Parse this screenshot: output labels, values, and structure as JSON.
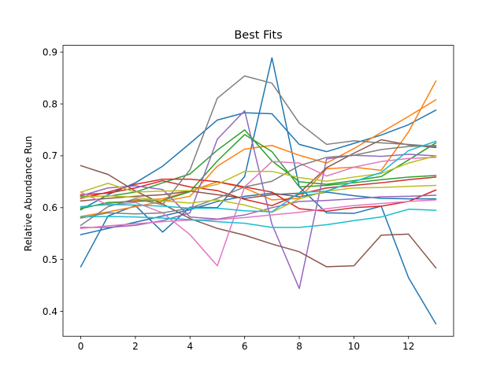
{
  "chart_data": {
    "type": "line",
    "title": "Best Fits",
    "xlabel": "",
    "ylabel": "Relative Abundance Run",
    "xlim": [
      -0.65,
      13.65
    ],
    "ylim": [
      0.352,
      0.913
    ],
    "xticks": [
      0,
      2,
      4,
      6,
      8,
      10,
      12
    ],
    "yticks": [
      0.4,
      0.5,
      0.6,
      0.7,
      0.8,
      0.9
    ],
    "grid": false,
    "x": [
      0,
      1,
      2,
      3,
      4,
      5,
      6,
      7,
      8,
      9,
      10,
      11,
      12,
      13
    ],
    "series": [
      {
        "color": "#1f77b4",
        "values": [
          0.486,
          0.584,
          0.604,
          0.553,
          0.601,
          0.6,
          0.66,
          0.889,
          0.64,
          0.59,
          0.589,
          0.603,
          0.465,
          0.376
        ]
      },
      {
        "color": "#1f77b4",
        "values": [
          0.596,
          0.625,
          0.648,
          0.68,
          0.724,
          0.769,
          0.783,
          0.781,
          0.722,
          0.708,
          0.724,
          0.74,
          0.76,
          0.788
        ]
      },
      {
        "color": "#1f77b4",
        "values": [
          0.548,
          0.56,
          0.572,
          0.584,
          0.596,
          0.612,
          0.622,
          0.628,
          0.621,
          0.63,
          0.623,
          0.618,
          0.617,
          0.617
        ]
      },
      {
        "color": "#ff7f0e",
        "values": [
          0.583,
          0.592,
          0.602,
          0.612,
          0.622,
          0.68,
          0.713,
          0.72,
          0.701,
          0.686,
          0.714,
          0.745,
          0.776,
          0.808
        ]
      },
      {
        "color": "#ff7f0e",
        "values": [
          0.6,
          0.608,
          0.614,
          0.617,
          0.632,
          0.65,
          0.638,
          0.615,
          0.618,
          0.675,
          0.678,
          0.672,
          0.746,
          0.844
        ]
      },
      {
        "color": "#2ca02c",
        "values": [
          0.622,
          0.622,
          0.63,
          0.648,
          0.665,
          0.711,
          0.75,
          0.69,
          0.65,
          0.645,
          0.652,
          0.66,
          0.692,
          0.725
        ]
      },
      {
        "color": "#2ca02c",
        "values": [
          0.598,
          0.61,
          0.612,
          0.614,
          0.631,
          0.69,
          0.741,
          0.708,
          0.64,
          0.643,
          0.648,
          0.654,
          0.659,
          0.662
        ]
      },
      {
        "color": "#d62728",
        "values": [
          0.625,
          0.628,
          0.638,
          0.652,
          0.64,
          0.633,
          0.616,
          0.604,
          0.626,
          0.638,
          0.643,
          0.648,
          0.654,
          0.659
        ]
      },
      {
        "color": "#d62728",
        "values": [
          0.618,
          0.63,
          0.645,
          0.655,
          0.655,
          0.65,
          0.64,
          0.63,
          0.598,
          0.593,
          0.6,
          0.603,
          0.612,
          0.634
        ]
      },
      {
        "color": "#9467bd",
        "values": [
          0.562,
          0.562,
          0.566,
          0.575,
          0.59,
          0.732,
          0.787,
          0.568,
          0.444,
          0.694,
          0.701,
          0.699,
          0.703,
          0.7
        ]
      },
      {
        "color": "#9467bd",
        "values": [
          0.623,
          0.638,
          0.642,
          0.635,
          0.582,
          0.578,
          0.586,
          0.6,
          0.612,
          0.614,
          0.617,
          0.621,
          0.622,
          0.624
        ]
      },
      {
        "color": "#8c564b",
        "values": [
          0.681,
          0.664,
          0.632,
          0.607,
          0.579,
          0.56,
          0.547,
          0.53,
          0.515,
          0.486,
          0.488,
          0.547,
          0.549,
          0.484
        ]
      },
      {
        "color": "#8c564b",
        "values": [
          0.613,
          0.618,
          0.622,
          0.625,
          0.632,
          0.625,
          0.618,
          0.625,
          0.628,
          0.677,
          0.705,
          0.731,
          0.721,
          0.716
        ]
      },
      {
        "color": "#e377c2",
        "values": [
          0.63,
          0.605,
          0.61,
          0.59,
          0.548,
          0.488,
          0.64,
          0.689,
          0.686,
          0.661,
          0.678,
          0.689,
          0.695,
          0.697
        ]
      },
      {
        "color": "#e377c2",
        "values": [
          0.56,
          0.565,
          0.569,
          0.573,
          0.576,
          0.577,
          0.581,
          0.586,
          0.591,
          0.598,
          0.604,
          0.608,
          0.612,
          0.615
        ]
      },
      {
        "color": "#7f7f7f",
        "values": [
          0.566,
          0.602,
          0.617,
          0.606,
          0.673,
          0.811,
          0.854,
          0.84,
          0.763,
          0.722,
          0.729,
          0.725,
          0.722,
          0.718
        ]
      },
      {
        "color": "#7f7f7f",
        "values": [
          0.58,
          0.59,
          0.588,
          0.59,
          0.599,
          0.618,
          0.64,
          0.651,
          0.681,
          0.697,
          0.701,
          0.712,
          0.718,
          0.72
        ]
      },
      {
        "color": "#bcbd22",
        "values": [
          0.63,
          0.647,
          0.63,
          0.632,
          0.633,
          0.645,
          0.67,
          0.67,
          0.658,
          0.651,
          0.659,
          0.666,
          0.686,
          0.7
        ]
      },
      {
        "color": "#bcbd22",
        "values": [
          0.62,
          0.623,
          0.62,
          0.613,
          0.609,
          0.615,
          0.605,
          0.591,
          0.617,
          0.632,
          0.638,
          0.639,
          0.641,
          0.643
        ]
      },
      {
        "color": "#17becf",
        "values": [
          0.602,
          0.606,
          0.605,
          0.603,
          0.599,
          0.599,
          0.594,
          0.592,
          0.629,
          0.632,
          0.65,
          0.668,
          0.71,
          0.728
        ]
      },
      {
        "color": "#17becf",
        "values": [
          0.582,
          0.583,
          0.582,
          0.58,
          0.577,
          0.573,
          0.57,
          0.562,
          0.562,
          0.567,
          0.575,
          0.582,
          0.597,
          0.595
        ]
      }
    ]
  }
}
